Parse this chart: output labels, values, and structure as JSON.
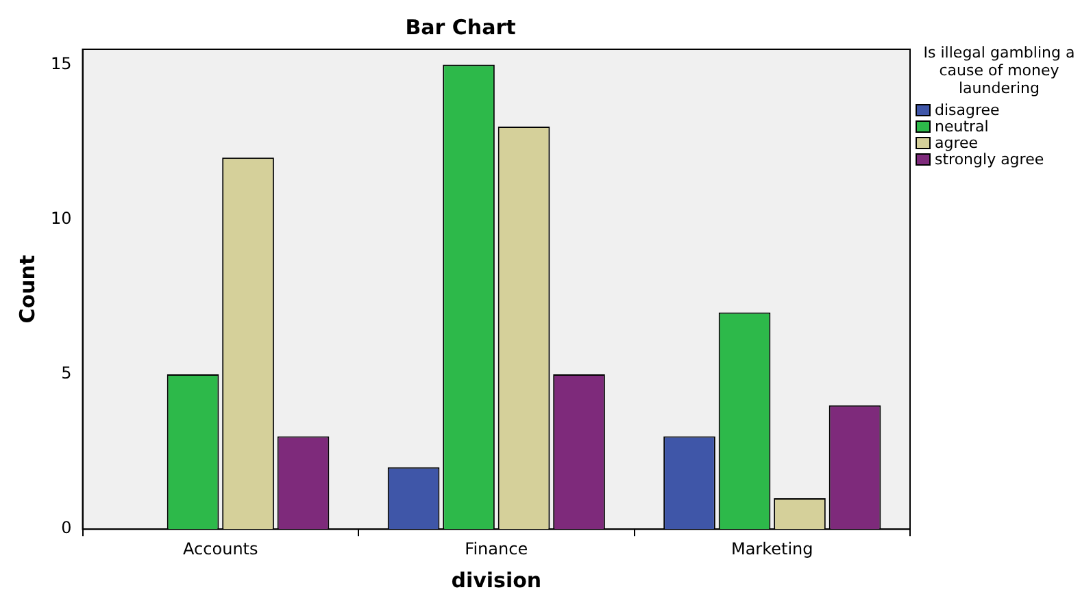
{
  "chart_data": {
    "type": "bar",
    "title": "Bar Chart",
    "xlabel": "division",
    "ylabel": "Count",
    "legend_title": "Is illegal gambling a cause of money laundering",
    "categories": [
      "Accounts",
      "Finance",
      "Marketing"
    ],
    "series": [
      {
        "name": "disagree",
        "color": "#3f56a8",
        "values": [
          null,
          2,
          3
        ]
      },
      {
        "name": "neutral",
        "color": "#2db94a",
        "values": [
          5,
          15,
          7
        ]
      },
      {
        "name": "agree",
        "color": "#d5d09a",
        "values": [
          12,
          13,
          1
        ]
      },
      {
        "name": "strongly agree",
        "color": "#7e2a7b",
        "values": [
          3,
          5,
          4
        ]
      }
    ],
    "ylim": [
      0,
      15.5
    ],
    "yticks": [
      0,
      5,
      10,
      15
    ],
    "grid": false,
    "legend": "right"
  }
}
